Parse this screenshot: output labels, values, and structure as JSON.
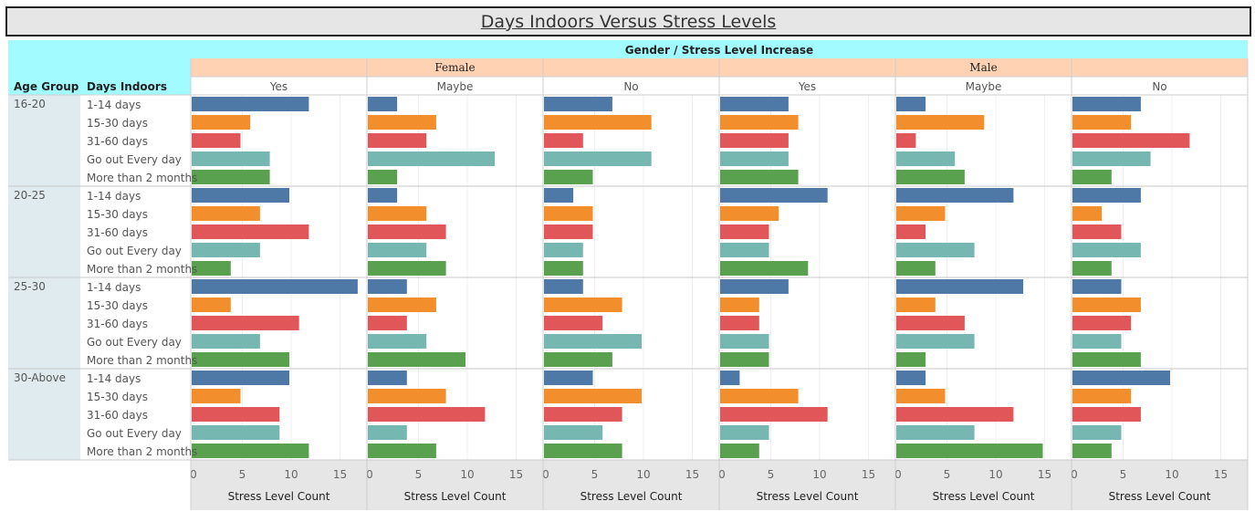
{
  "chart_data": {
    "type": "bar",
    "title": "Days Indoors Versus Stress Levels",
    "column_header_title": "Gender / Stress Level Increase",
    "row_header_labels": [
      "Age Group",
      "Days Indoors"
    ],
    "genders": [
      "Female",
      "Male"
    ],
    "stress_levels": [
      "Yes",
      "Maybe",
      "No"
    ],
    "age_groups": [
      "16-20",
      "20-25",
      "25-30",
      "30-Above"
    ],
    "days_indoors": [
      "1-14 days",
      "15-30 days",
      "31-60 days",
      "Go out Every day",
      "More than 2 months"
    ],
    "series_colors": [
      "#4e79a7",
      "#f28e2b",
      "#e15759",
      "#76b7b2",
      "#59a14f"
    ],
    "xlabel": "Stress Level Count",
    "xlim": [
      0,
      17
    ],
    "xticks": [
      0,
      5,
      10,
      15
    ],
    "panels": [
      {
        "gender": "Female",
        "stress": "Yes",
        "values": [
          [
            12,
            6,
            5,
            8,
            8
          ],
          [
            10,
            7,
            12,
            7,
            4
          ],
          [
            17,
            4,
            11,
            7,
            10
          ],
          [
            10,
            5,
            9,
            9,
            12
          ]
        ]
      },
      {
        "gender": "Female",
        "stress": "Maybe",
        "values": [
          [
            3,
            7,
            6,
            13,
            3
          ],
          [
            3,
            6,
            8,
            6,
            8
          ],
          [
            4,
            7,
            4,
            6,
            10
          ],
          [
            4,
            8,
            12,
            4,
            7
          ]
        ]
      },
      {
        "gender": "Female",
        "stress": "No",
        "values": [
          [
            7,
            11,
            4,
            11,
            5
          ],
          [
            3,
            5,
            5,
            4,
            4
          ],
          [
            4,
            8,
            6,
            10,
            7
          ],
          [
            5,
            10,
            8,
            6,
            8
          ]
        ]
      },
      {
        "gender": "Male",
        "stress": "Yes",
        "values": [
          [
            7,
            8,
            7,
            7,
            8
          ],
          [
            11,
            6,
            5,
            5,
            9
          ],
          [
            7,
            4,
            4,
            5,
            5
          ],
          [
            2,
            8,
            11,
            5,
            4
          ]
        ]
      },
      {
        "gender": "Male",
        "stress": "Maybe",
        "values": [
          [
            3,
            9,
            2,
            6,
            7
          ],
          [
            12,
            5,
            3,
            8,
            4
          ],
          [
            13,
            4,
            7,
            8,
            3
          ],
          [
            3,
            5,
            12,
            8,
            15
          ]
        ]
      },
      {
        "gender": "Male",
        "stress": "No",
        "values": [
          [
            7,
            6,
            12,
            8,
            4
          ],
          [
            7,
            3,
            5,
            7,
            4
          ],
          [
            5,
            7,
            6,
            5,
            7
          ],
          [
            10,
            6,
            7,
            5,
            4
          ]
        ]
      }
    ]
  }
}
